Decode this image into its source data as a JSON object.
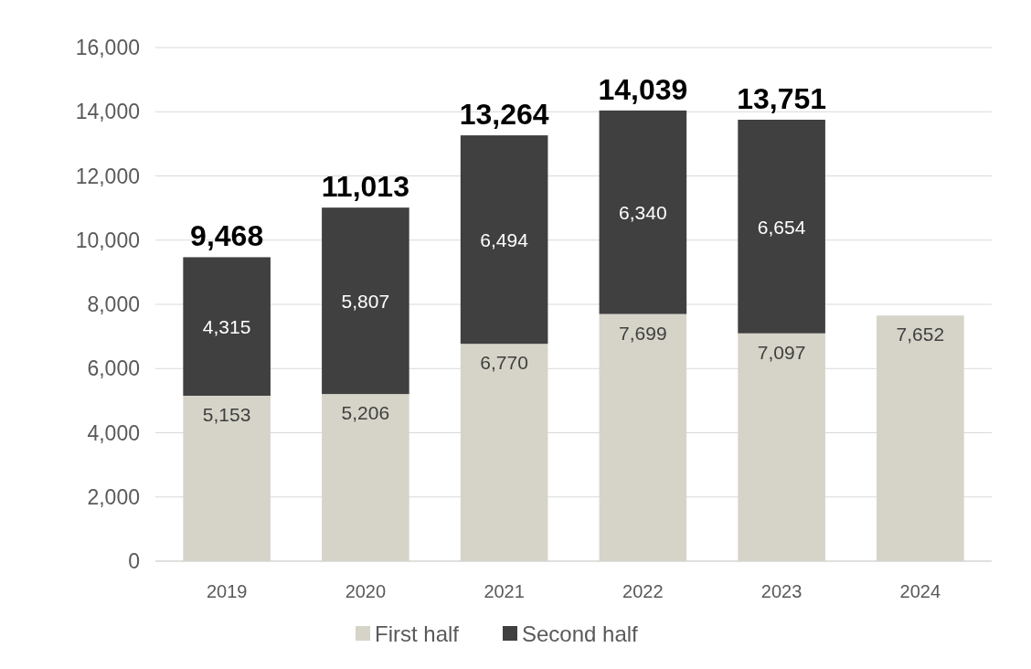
{
  "chart_data": {
    "type": "bar",
    "stacked": true,
    "categories": [
      "2019",
      "2020",
      "2021",
      "2022",
      "2023",
      "2024"
    ],
    "series": [
      {
        "name": "First half",
        "color": "#d6d4c8",
        "values": [
          5153,
          5206,
          6770,
          7699,
          7097,
          7652
        ],
        "value_labels": [
          "5,153",
          "5,206",
          "6,770",
          "7,699",
          "7,097",
          "7,652"
        ]
      },
      {
        "name": "Second half",
        "color": "#404040",
        "values": [
          4315,
          5807,
          6494,
          6340,
          6654,
          null
        ],
        "value_labels": [
          "4,315",
          "5,807",
          "6,494",
          "6,340",
          "6,654",
          null
        ]
      }
    ],
    "totals": [
      "9,468",
      "11,013",
      "13,264",
      "14,039",
      "13,751",
      null
    ],
    "ylim": [
      0,
      16000
    ],
    "yticks": [
      {
        "value": 0,
        "label": "0"
      },
      {
        "value": 2000,
        "label": "2,000"
      },
      {
        "value": 4000,
        "label": "4,000"
      },
      {
        "value": 6000,
        "label": "6,000"
      },
      {
        "value": 8000,
        "label": "8,000"
      },
      {
        "value": 10000,
        "label": "10,000"
      },
      {
        "value": 12000,
        "label": "12,000"
      },
      {
        "value": 14000,
        "label": "14,000"
      },
      {
        "value": 16000,
        "label": "16,000"
      }
    ],
    "grid": "y",
    "legend": "bottom"
  }
}
